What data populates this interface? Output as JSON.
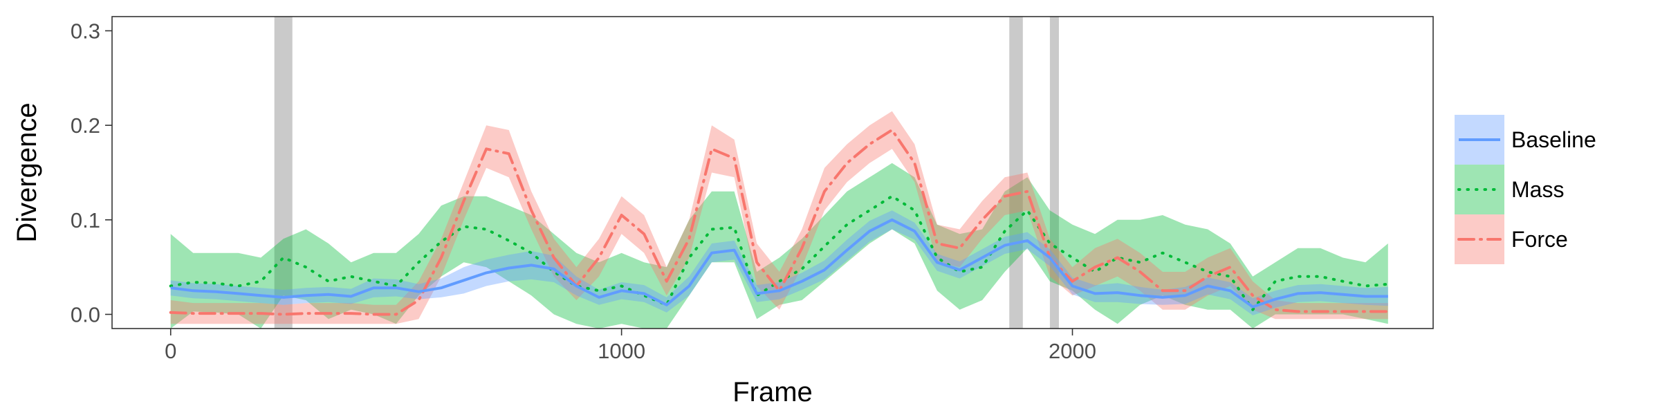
{
  "chart_data": {
    "type": "line",
    "title": "",
    "xlabel": "Frame",
    "ylabel": "Divergence",
    "xlim": [
      -130,
      2800
    ],
    "ylim": [
      -0.015,
      0.315
    ],
    "xticks": [
      0,
      1000,
      2000
    ],
    "xtick_labels": [
      "0",
      "1000",
      "2000"
    ],
    "yticks": [
      0,
      0.1,
      0.2,
      0.3
    ],
    "ytick_labels": [
      "0.0",
      "0.1",
      "0.2",
      "0.3"
    ],
    "grid": false,
    "legend_position": "right",
    "shaded_regions": [
      [
        230,
        270
      ],
      [
        1860,
        1890
      ],
      [
        1950,
        1970
      ]
    ],
    "x": [
      0,
      50,
      100,
      150,
      200,
      250,
      300,
      350,
      400,
      450,
      500,
      550,
      600,
      650,
      700,
      750,
      800,
      850,
      900,
      950,
      1000,
      1050,
      1100,
      1150,
      1200,
      1250,
      1300,
      1350,
      1400,
      1450,
      1500,
      1550,
      1600,
      1650,
      1700,
      1750,
      1800,
      1850,
      1900,
      1950,
      2000,
      2050,
      2100,
      2150,
      2200,
      2250,
      2300,
      2350,
      2400,
      2450,
      2500,
      2550,
      2600,
      2650,
      2700
    ],
    "series": [
      {
        "name": "Baseline",
        "line_style": "solid",
        "color": "#619CFF",
        "values": [
          0.028,
          0.025,
          0.024,
          0.022,
          0.02,
          0.018,
          0.02,
          0.021,
          0.019,
          0.028,
          0.028,
          0.024,
          0.028,
          0.036,
          0.044,
          0.049,
          0.052,
          0.048,
          0.03,
          0.018,
          0.025,
          0.022,
          0.01,
          0.03,
          0.065,
          0.068,
          0.022,
          0.025,
          0.035,
          0.047,
          0.068,
          0.088,
          0.1,
          0.088,
          0.055,
          0.047,
          0.06,
          0.073,
          0.078,
          0.06,
          0.03,
          0.022,
          0.023,
          0.02,
          0.018,
          0.02,
          0.03,
          0.025,
          0.008,
          0.016,
          0.022,
          0.023,
          0.021,
          0.019,
          0.019
        ],
        "lower": [
          0.02,
          0.017,
          0.016,
          0.014,
          0.012,
          0.01,
          0.012,
          0.013,
          0.011,
          0.018,
          0.019,
          0.016,
          0.018,
          0.022,
          0.03,
          0.035,
          0.037,
          0.034,
          0.02,
          0.01,
          0.016,
          0.013,
          0.002,
          0.02,
          0.055,
          0.058,
          0.013,
          0.016,
          0.026,
          0.037,
          0.057,
          0.077,
          0.09,
          0.079,
          0.046,
          0.038,
          0.051,
          0.064,
          0.069,
          0.051,
          0.021,
          0.013,
          0.013,
          0.011,
          0.01,
          0.011,
          0.021,
          0.016,
          -0.001,
          0.007,
          0.013,
          0.014,
          0.012,
          0.01,
          0.009
        ],
        "upper": [
          0.036,
          0.033,
          0.032,
          0.03,
          0.028,
          0.026,
          0.028,
          0.029,
          0.027,
          0.038,
          0.037,
          0.032,
          0.038,
          0.05,
          0.058,
          0.063,
          0.067,
          0.062,
          0.04,
          0.026,
          0.034,
          0.031,
          0.018,
          0.04,
          0.075,
          0.078,
          0.031,
          0.034,
          0.044,
          0.057,
          0.079,
          0.099,
          0.11,
          0.097,
          0.064,
          0.056,
          0.069,
          0.082,
          0.087,
          0.069,
          0.039,
          0.031,
          0.033,
          0.029,
          0.026,
          0.029,
          0.039,
          0.034,
          0.017,
          0.025,
          0.031,
          0.032,
          0.03,
          0.028,
          0.029
        ]
      },
      {
        "name": "Mass",
        "line_style": "dotted",
        "color": "#00BA38",
        "values": [
          0.03,
          0.034,
          0.033,
          0.03,
          0.035,
          0.06,
          0.05,
          0.035,
          0.04,
          0.035,
          0.03,
          0.055,
          0.077,
          0.093,
          0.09,
          0.078,
          0.065,
          0.045,
          0.03,
          0.025,
          0.03,
          0.02,
          0.01,
          0.06,
          0.09,
          0.092,
          0.02,
          0.035,
          0.048,
          0.072,
          0.095,
          0.11,
          0.125,
          0.11,
          0.06,
          0.045,
          0.05,
          0.088,
          0.11,
          0.075,
          0.06,
          0.045,
          0.06,
          0.055,
          0.065,
          0.055,
          0.045,
          0.04,
          0.005,
          0.035,
          0.04,
          0.04,
          0.035,
          0.03,
          0.032
        ],
        "lower": [
          -0.02,
          0.003,
          0.002,
          0,
          -0.015,
          0.02,
          0.015,
          -0.005,
          0.005,
          0,
          -0.01,
          0.02,
          0.04,
          0.055,
          0.05,
          0.035,
          0.02,
          0,
          -0.01,
          -0.015,
          -0.01,
          -0.02,
          -0.03,
          0.02,
          0.055,
          0.055,
          -0.005,
          0.01,
          0.015,
          0.035,
          0.055,
          0.075,
          0.09,
          0.075,
          0.025,
          0.005,
          0.015,
          0.045,
          0.07,
          0.035,
          0.025,
          0.005,
          -0.01,
          0.01,
          0.02,
          0.01,
          0.005,
          0.005,
          -0.02,
          0,
          0,
          0,
          0,
          -0.005,
          -0.01
        ],
        "upper": [
          0.085,
          0.065,
          0.065,
          0.065,
          0.06,
          0.08,
          0.09,
          0.075,
          0.055,
          0.065,
          0.065,
          0.085,
          0.115,
          0.125,
          0.125,
          0.115,
          0.105,
          0.085,
          0.065,
          0.055,
          0.065,
          0.055,
          0.05,
          0.1,
          0.13,
          0.13,
          0.045,
          0.06,
          0.08,
          0.105,
          0.13,
          0.145,
          0.16,
          0.145,
          0.095,
          0.085,
          0.09,
          0.13,
          0.145,
          0.11,
          0.095,
          0.085,
          0.1,
          0.1,
          0.105,
          0.095,
          0.09,
          0.075,
          0.04,
          0.055,
          0.07,
          0.07,
          0.06,
          0.055,
          0.075
        ]
      },
      {
        "name": "Force",
        "line_style": "dotdash",
        "color": "#F8766D",
        "values": [
          0.002,
          0.001,
          0.001,
          0.001,
          0.001,
          0,
          0.001,
          0.001,
          0.001,
          0,
          0,
          0.015,
          0.06,
          0.12,
          0.175,
          0.17,
          0.11,
          0.06,
          0.03,
          0.06,
          0.105,
          0.085,
          0.035,
          0.08,
          0.175,
          0.165,
          0.055,
          0.025,
          0.07,
          0.13,
          0.16,
          0.18,
          0.195,
          0.16,
          0.075,
          0.07,
          0.1,
          0.125,
          0.13,
          0.06,
          0.035,
          0.05,
          0.06,
          0.045,
          0.025,
          0.025,
          0.04,
          0.05,
          0.02,
          0.005,
          0.003,
          0.003,
          0.003,
          0.003,
          0.003
        ],
        "lower": [
          -0.01,
          -0.01,
          -0.01,
          -0.01,
          -0.01,
          -0.01,
          -0.01,
          -0.01,
          -0.01,
          -0.01,
          -0.01,
          -0.005,
          0.04,
          0.1,
          0.155,
          0.145,
          0.09,
          0.04,
          0.015,
          0.04,
          0.085,
          0.065,
          0.02,
          0.06,
          0.15,
          0.145,
          0.03,
          0.005,
          0.05,
          0.11,
          0.14,
          0.16,
          0.175,
          0.14,
          0.055,
          0.05,
          0.08,
          0.105,
          0.11,
          0.04,
          0.02,
          0.03,
          0.04,
          0.025,
          0.005,
          0.005,
          0.02,
          0.03,
          0.005,
          -0.005,
          -0.005,
          -0.005,
          -0.005,
          -0.005,
          -0.005
        ],
        "upper": [
          0.015,
          0.012,
          0.012,
          0.012,
          0.012,
          0.01,
          0.012,
          0.012,
          0.012,
          0.01,
          0.01,
          0.035,
          0.08,
          0.14,
          0.2,
          0.195,
          0.13,
          0.08,
          0.05,
          0.08,
          0.125,
          0.105,
          0.05,
          0.1,
          0.2,
          0.185,
          0.075,
          0.045,
          0.09,
          0.155,
          0.18,
          0.2,
          0.215,
          0.18,
          0.095,
          0.09,
          0.12,
          0.145,
          0.15,
          0.08,
          0.05,
          0.07,
          0.08,
          0.065,
          0.045,
          0.045,
          0.06,
          0.07,
          0.035,
          0.015,
          0.012,
          0.012,
          0.012,
          0.012,
          0.012
        ]
      }
    ]
  }
}
